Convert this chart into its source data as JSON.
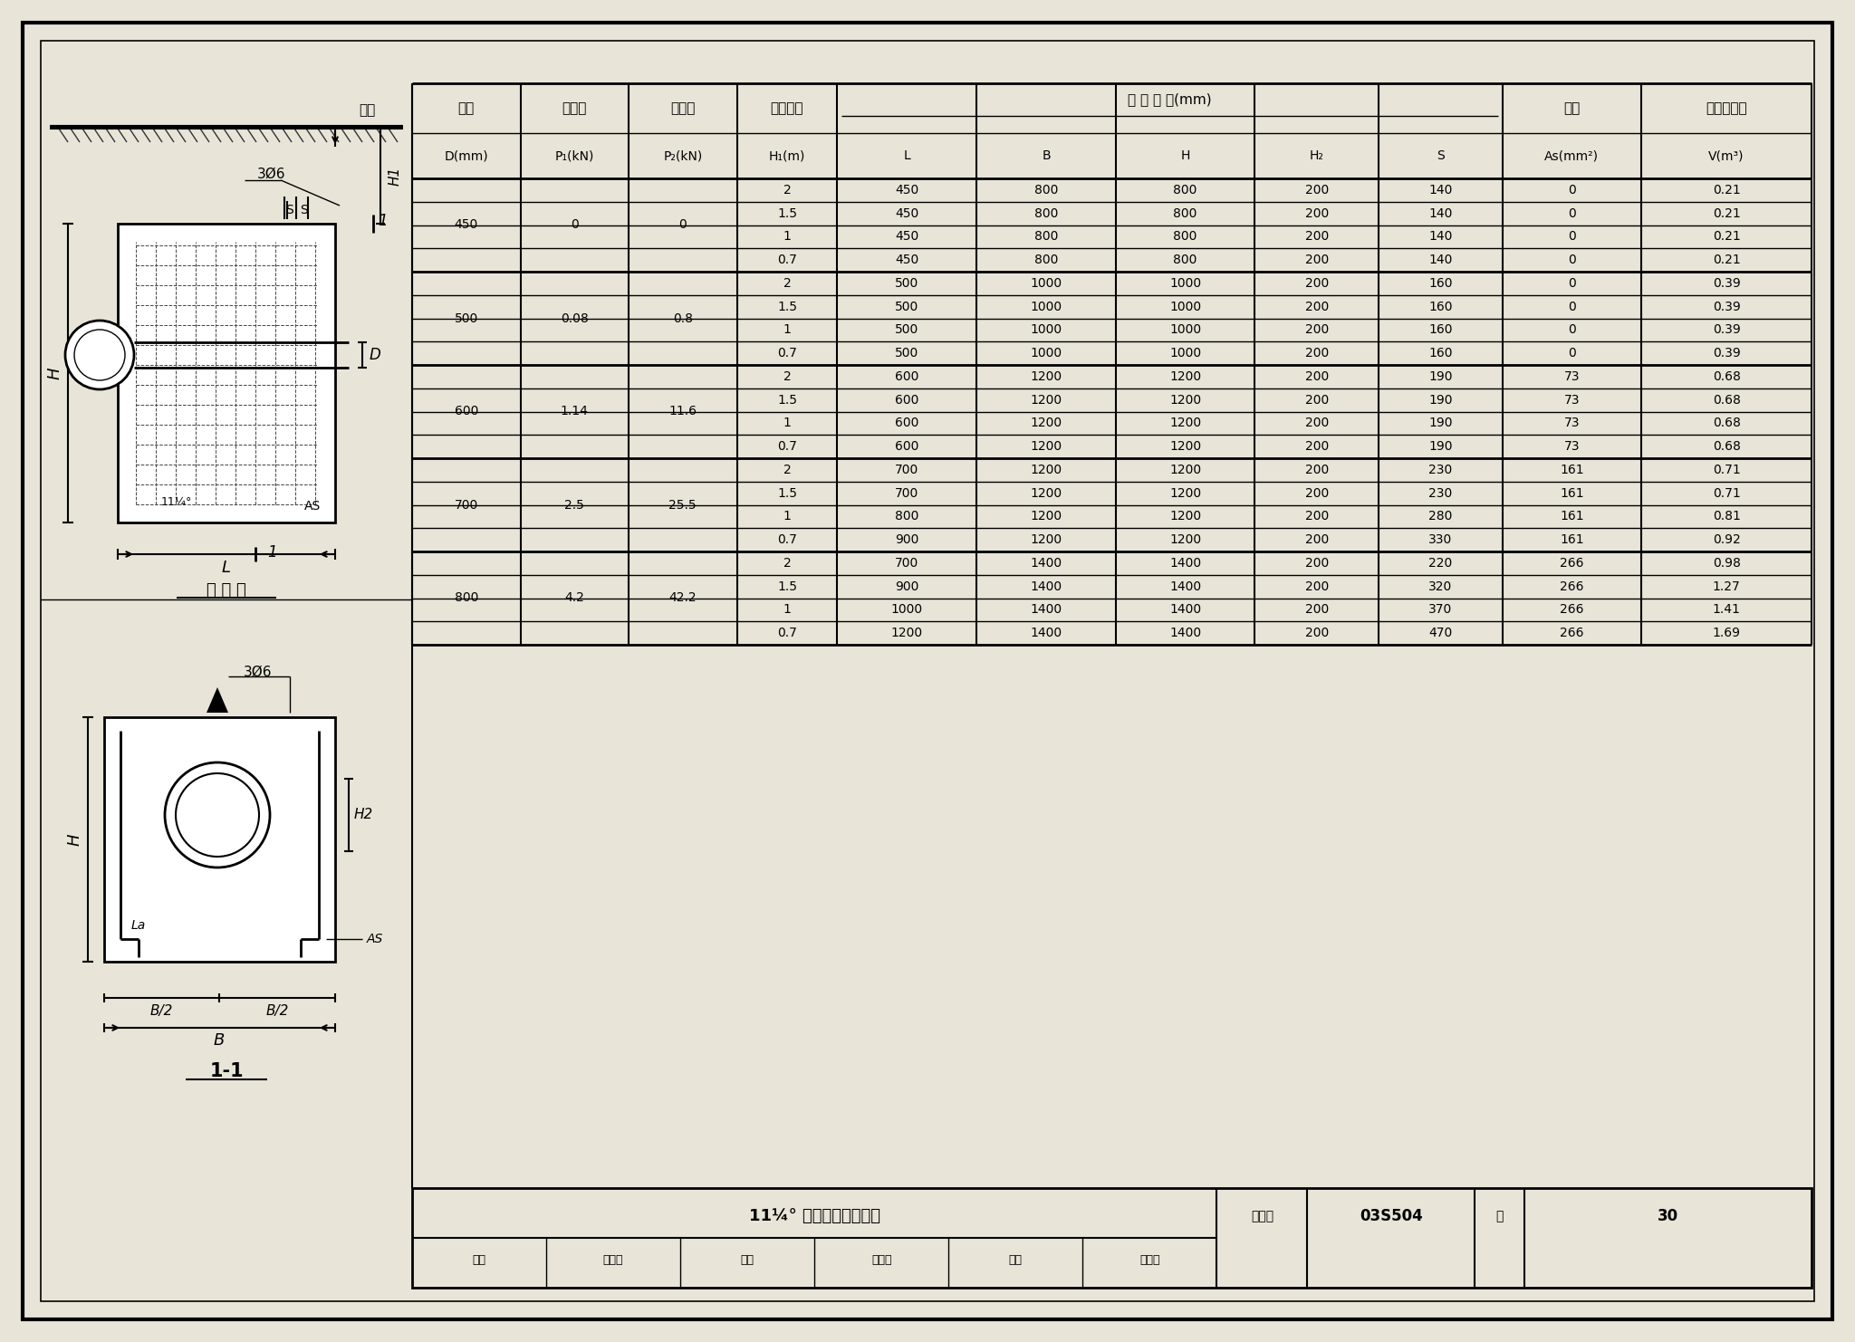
{
  "title": "11¼° 垂直向下弯管支墓",
  "title_code": "03S504",
  "page": "30",
  "bg_color": "#e8e4d8",
  "table_data": [
    [
      "450",
      "0",
      "0",
      "2",
      "450",
      "800",
      "800",
      "200",
      "140",
      "0",
      "0.21"
    ],
    [
      "",
      "",
      "",
      "1.5",
      "450",
      "800",
      "800",
      "200",
      "140",
      "0",
      "0.21"
    ],
    [
      "",
      "",
      "",
      "1",
      "450",
      "800",
      "800",
      "200",
      "140",
      "0",
      "0.21"
    ],
    [
      "",
      "",
      "",
      "0.7",
      "450",
      "800",
      "800",
      "200",
      "140",
      "0",
      "0.21"
    ],
    [
      "500",
      "0.08",
      "0.8",
      "2",
      "500",
      "1000",
      "1000",
      "200",
      "160",
      "0",
      "0.39"
    ],
    [
      "",
      "",
      "",
      "1.5",
      "500",
      "1000",
      "1000",
      "200",
      "160",
      "0",
      "0.39"
    ],
    [
      "",
      "",
      "",
      "1",
      "500",
      "1000",
      "1000",
      "200",
      "160",
      "0",
      "0.39"
    ],
    [
      "",
      "",
      "",
      "0.7",
      "500",
      "1000",
      "1000",
      "200",
      "160",
      "0",
      "0.39"
    ],
    [
      "600",
      "1.14",
      "11.6",
      "2",
      "600",
      "1200",
      "1200",
      "200",
      "190",
      "73",
      "0.68"
    ],
    [
      "",
      "",
      "",
      "1.5",
      "600",
      "1200",
      "1200",
      "200",
      "190",
      "73",
      "0.68"
    ],
    [
      "",
      "",
      "",
      "1",
      "600",
      "1200",
      "1200",
      "200",
      "190",
      "73",
      "0.68"
    ],
    [
      "",
      "",
      "",
      "0.7",
      "600",
      "1200",
      "1200",
      "200",
      "190",
      "73",
      "0.68"
    ],
    [
      "700",
      "2.5",
      "25.5",
      "2",
      "700",
      "1200",
      "1200",
      "200",
      "230",
      "161",
      "0.71"
    ],
    [
      "",
      "",
      "",
      "1.5",
      "700",
      "1200",
      "1200",
      "200",
      "230",
      "161",
      "0.71"
    ],
    [
      "",
      "",
      "",
      "1",
      "800",
      "1200",
      "1200",
      "200",
      "280",
      "161",
      "0.81"
    ],
    [
      "",
      "",
      "",
      "0.7",
      "900",
      "1200",
      "1200",
      "200",
      "330",
      "161",
      "0.92"
    ],
    [
      "800",
      "4.2",
      "42.2",
      "2",
      "700",
      "1400",
      "1400",
      "200",
      "220",
      "266",
      "0.98"
    ],
    [
      "",
      "",
      "",
      "1.5",
      "900",
      "1400",
      "1400",
      "200",
      "320",
      "266",
      "1.27"
    ],
    [
      "",
      "",
      "",
      "1",
      "1000",
      "1400",
      "1400",
      "200",
      "370",
      "266",
      "1.41"
    ],
    [
      "",
      "",
      "",
      "0.7",
      "1200",
      "1400",
      "1400",
      "200",
      "470",
      "266",
      "1.69"
    ]
  ]
}
